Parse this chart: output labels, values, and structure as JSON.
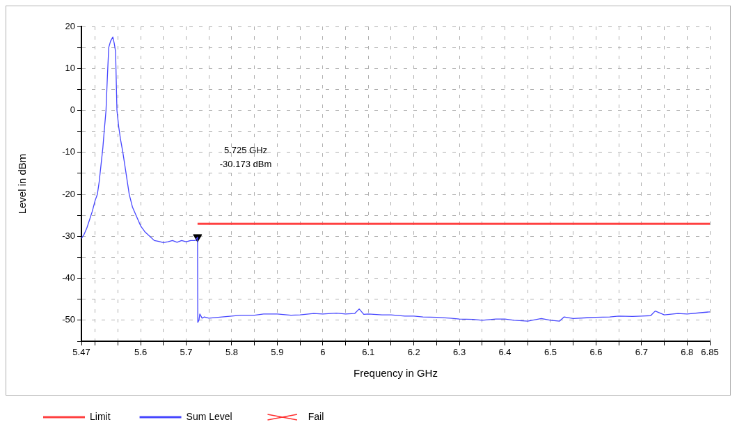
{
  "chart_data": {
    "type": "line",
    "xlabel": "Frequency in GHz",
    "ylabel": "Level in dBm",
    "xlim": [
      5.47,
      6.85
    ],
    "ylim": [
      -55,
      20
    ],
    "xticks": [
      5.47,
      {
        "value": 5.5,
        "label": null
      },
      {
        "value": 5.55,
        "label": null
      },
      5.6,
      {
        "value": 5.65,
        "label": null
      },
      5.7,
      {
        "value": 5.75,
        "label": null
      },
      5.8,
      {
        "value": 5.85,
        "label": null
      },
      5.9,
      {
        "value": 5.95,
        "label": null
      },
      6,
      {
        "value": 6.05,
        "label": null
      },
      6.1,
      {
        "value": 6.15,
        "label": null
      },
      6.2,
      {
        "value": 6.25,
        "label": null
      },
      6.3,
      {
        "value": 6.35,
        "label": null
      },
      6.4,
      {
        "value": 6.45,
        "label": null
      },
      6.5,
      {
        "value": 6.55,
        "label": null
      },
      6.6,
      {
        "value": 6.65,
        "label": null
      },
      6.7,
      {
        "value": 6.75,
        "label": null
      },
      6.8,
      6.85
    ],
    "yticks": [
      {
        "value": -55,
        "label": null
      },
      -50,
      {
        "value": -45,
        "label": null
      },
      -40,
      {
        "value": -35,
        "label": null
      },
      -30,
      {
        "value": -25,
        "label": null
      },
      -20,
      {
        "value": -15,
        "label": null
      },
      -10,
      {
        "value": -5,
        "label": null
      },
      0,
      {
        "value": 5,
        "label": null
      },
      10,
      {
        "value": 15,
        "label": null
      },
      20
    ],
    "grid": true,
    "legend": "bottom left",
    "line_style": "solid",
    "annotations": [
      "5.725 GHz\n-30.173 dBm"
    ],
    "series": [
      {
        "name": "Limit",
        "color": "#ff4040",
        "x": [
          5.725,
          6.85
        ],
        "values": [
          -27,
          -27
        ]
      },
      {
        "name": "Sum Level",
        "color": "#4646ff",
        "x": [
          5.47,
          5.476,
          5.482,
          5.488,
          5.494,
          5.5,
          5.505,
          5.509,
          5.513,
          5.517,
          5.52,
          5.524,
          5.527,
          5.53,
          5.534,
          5.539,
          5.542,
          5.545,
          5.548,
          5.552,
          5.556,
          5.561,
          5.568,
          5.575,
          5.582,
          5.59,
          5.6,
          5.61,
          5.62,
          5.63,
          5.64,
          5.65,
          5.66,
          5.67,
          5.68,
          5.69,
          5.7,
          5.71,
          5.72,
          5.725,
          5.7255,
          5.728,
          5.73,
          5.735,
          5.74,
          5.75,
          5.77,
          5.8,
          5.82,
          5.85,
          5.87,
          5.9,
          5.93,
          5.95,
          5.98,
          6,
          6.03,
          6.05,
          6.07,
          6.08,
          6.09,
          6.1,
          6.13,
          6.15,
          6.18,
          6.2,
          6.22,
          6.25,
          6.28,
          6.3,
          6.33,
          6.35,
          6.38,
          6.4,
          6.42,
          6.45,
          6.48,
          6.5,
          6.52,
          6.53,
          6.55,
          6.58,
          6.6,
          6.63,
          6.65,
          6.68,
          6.7,
          6.72,
          6.73,
          6.75,
          6.78,
          6.8,
          6.83,
          6.85
        ],
        "values": [
          -30.5,
          -29.5,
          -28,
          -26,
          -24,
          -21.5,
          -20,
          -17,
          -13,
          -9,
          -5,
          0,
          8,
          15,
          16.5,
          17.5,
          16,
          14,
          0,
          -4,
          -7,
          -10,
          -15,
          -20,
          -23,
          -25,
          -27.5,
          -29,
          -30,
          -31,
          -31.2,
          -31.5,
          -31.3,
          -31,
          -31.4,
          -31,
          -31.3,
          -31,
          -31,
          -30.2,
          -50.5,
          -50,
          -48.5,
          -49.5,
          -49.2,
          -49.5,
          -49.3,
          -49,
          -48.8,
          -48.8,
          -48.5,
          -48.5,
          -48.8,
          -48.7,
          -48.4,
          -48.5,
          -48.3,
          -48.5,
          -48.4,
          -47.3,
          -48.6,
          -48.5,
          -48.7,
          -48.7,
          -49,
          -49,
          -49.2,
          -49.3,
          -49.5,
          -49.7,
          -49.8,
          -50,
          -49.7,
          -49.7,
          -50,
          -50.2,
          -49.6,
          -50,
          -50.2,
          -49.2,
          -49.6,
          -49.4,
          -49.3,
          -49.2,
          -49,
          -49.1,
          -49,
          -48.9,
          -47.8,
          -48.7,
          -48.4,
          -48.5,
          -48.2,
          -48
        ]
      },
      {
        "type": "scatter",
        "marker": "triangle",
        "color": "#000000",
        "x": [
          5.725
        ],
        "values": [
          -30.173
        ]
      },
      {
        "name": "Fail",
        "type": "scatter",
        "marker": "cross",
        "color": "#ff3030"
      }
    ]
  }
}
